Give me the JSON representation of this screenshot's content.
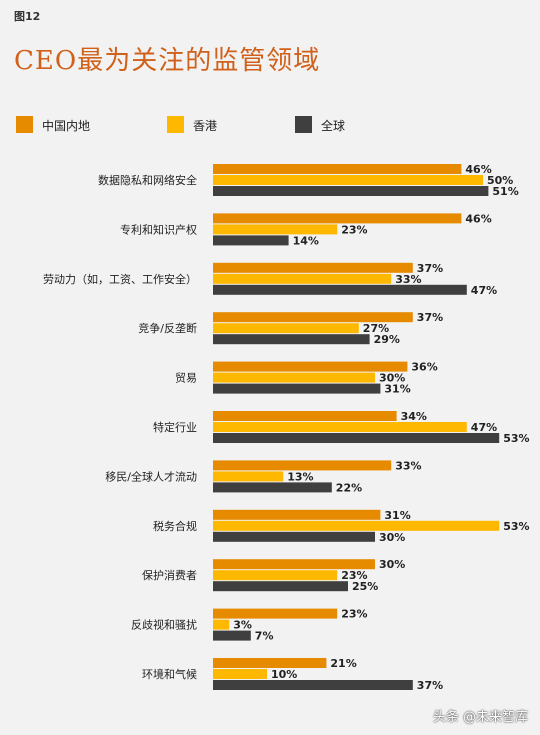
{
  "figure_label": "图12",
  "title": "CEO最为关注的监管领域",
  "watermark": "头条 @未来智库",
  "colors": {
    "mainland": "#e68a00",
    "hongkong": "#ffb800",
    "global": "#3f3f3f",
    "title": "#d0601a"
  },
  "chart_data": {
    "type": "bar",
    "orientation": "horizontal",
    "title": "CEO最为关注的监管领域",
    "legend_position": "top",
    "xlim": [
      0,
      55
    ],
    "unit": "%",
    "categories": [
      "数据隐私和网络安全",
      "专利和知识产权",
      "劳动力（如，工资、工作安全）",
      "竞争/反垄断",
      "贸易",
      "特定行业",
      "移民/全球人才流动",
      "税务合规",
      "保护消费者",
      "反歧视和骚扰",
      "环境和气候"
    ],
    "series": [
      {
        "name": "中国内地",
        "values": [
          46,
          46,
          37,
          37,
          36,
          34,
          33,
          31,
          30,
          23,
          21
        ]
      },
      {
        "name": "香港",
        "values": [
          50,
          23,
          33,
          27,
          30,
          47,
          13,
          53,
          23,
          3,
          10
        ]
      },
      {
        "name": "全球",
        "values": [
          51,
          14,
          47,
          29,
          31,
          53,
          22,
          30,
          25,
          7,
          37
        ]
      }
    ]
  }
}
